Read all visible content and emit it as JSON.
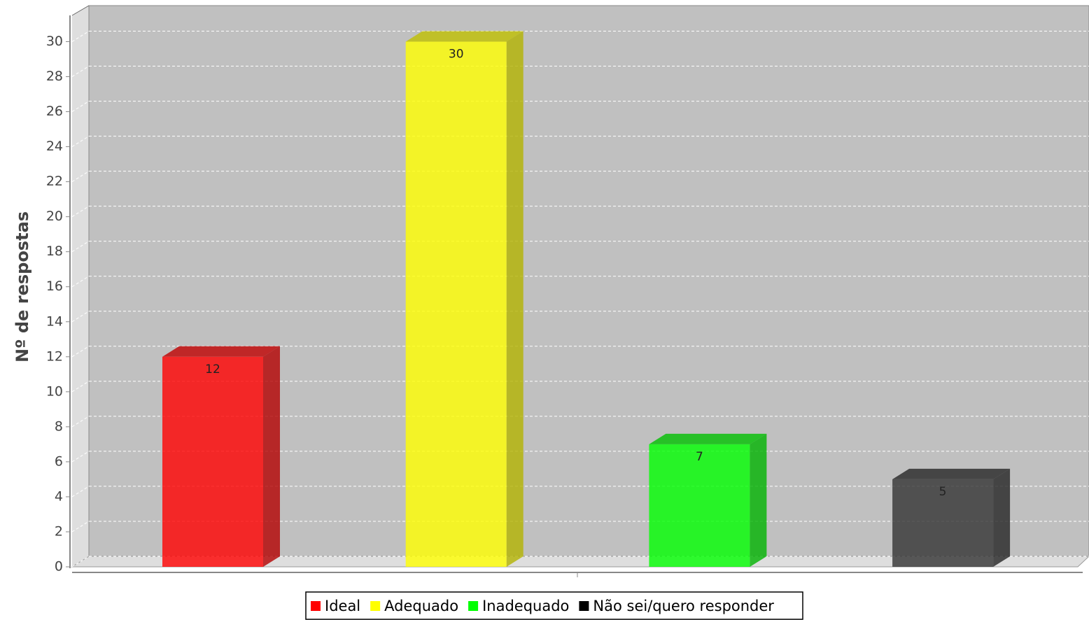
{
  "chart_data": {
    "type": "bar",
    "y_label": "Nº de respostas",
    "categories": [
      null
    ],
    "series": [
      {
        "name": "Ideal",
        "color": "#ff0000",
        "values": [
          12
        ]
      },
      {
        "name": "Adequado",
        "color": "#ffff00",
        "values": [
          30
        ]
      },
      {
        "name": "Inadequado",
        "color": "#00ff00",
        "values": [
          7
        ]
      },
      {
        "name": "Não sei/quero responder",
        "color": "#000000",
        "values": [
          5
        ]
      }
    ],
    "ylim": [
      0,
      31.5
    ],
    "yticks": [
      0,
      2,
      4,
      6,
      8,
      10,
      12,
      14,
      16,
      18,
      20,
      22,
      24,
      26,
      28,
      30
    ],
    "grid": true,
    "legend": "bottom"
  }
}
